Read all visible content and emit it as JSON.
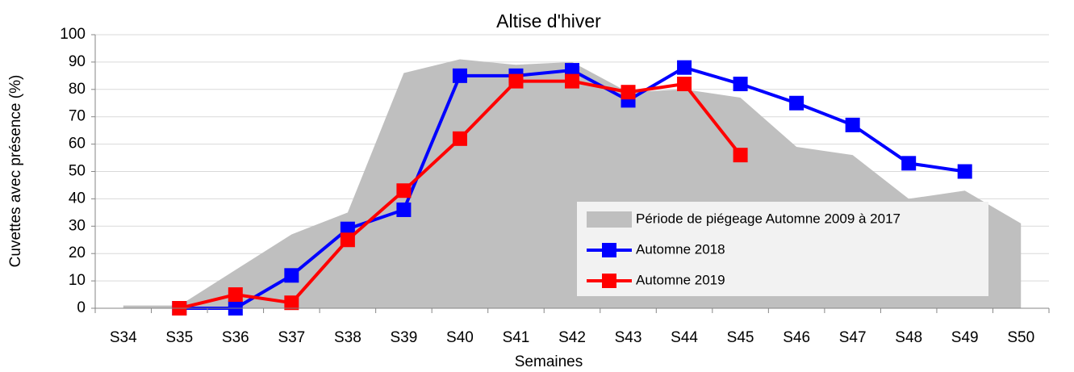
{
  "chart_data": {
    "type": "line",
    "title": "Altise d'hiver",
    "x_label": "Semaines",
    "y_label": "Cuvettes avec présence (%)",
    "categories": [
      "S34",
      "S35",
      "S36",
      "S37",
      "S38",
      "S39",
      "S40",
      "S41",
      "S42",
      "S43",
      "S44",
      "S45",
      "S46",
      "S47",
      "S48",
      "S49",
      "S50"
    ],
    "series": [
      {
        "name": "Période de piégeage Automne 2009 à 2017",
        "type": "area",
        "color": "#bfbfbf",
        "values": [
          1,
          1,
          14,
          27,
          35,
          86,
          91,
          89,
          90,
          79,
          80,
          77,
          59,
          56,
          40,
          43,
          31
        ]
      },
      {
        "name": "Automne 2018",
        "type": "line",
        "color": "#0000ff",
        "values": [
          null,
          0,
          0,
          12,
          29,
          36,
          85,
          85,
          87,
          76,
          88,
          82,
          75,
          67,
          53,
          50,
          null
        ]
      },
      {
        "name": "Automne 2019",
        "type": "line",
        "color": "#ff0000",
        "values": [
          null,
          0,
          5,
          2,
          25,
          43,
          62,
          83,
          83,
          79,
          82,
          56,
          null,
          null,
          null,
          null,
          null
        ]
      }
    ],
    "ylim": [
      0,
      100
    ],
    "yticks": [
      0,
      10,
      20,
      30,
      40,
      50,
      60,
      70,
      80,
      90,
      100
    ],
    "grid": true
  }
}
